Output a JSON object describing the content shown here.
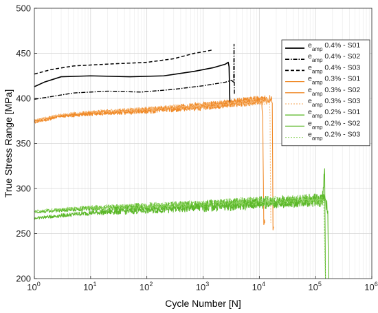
{
  "chart_data": {
    "type": "line",
    "title": "",
    "xlabel": "Cycle Number [N]",
    "ylabel": "True Stress Range [MPa]",
    "xscale": "log",
    "xlim": [
      1,
      1000000
    ],
    "ylim": [
      200,
      500
    ],
    "grid": true,
    "legend_position": "top-right",
    "x_ticks": [
      {
        "base": "10",
        "exp": "0"
      },
      {
        "base": "10",
        "exp": "1"
      },
      {
        "base": "10",
        "exp": "2"
      },
      {
        "base": "10",
        "exp": "3"
      },
      {
        "base": "10",
        "exp": "4"
      },
      {
        "base": "10",
        "exp": "5"
      },
      {
        "base": "10",
        "exp": "6"
      }
    ],
    "x_tick_values": [
      1,
      10,
      100,
      1000,
      10000,
      100000,
      1000000
    ],
    "y_ticks": [
      "200",
      "250",
      "300",
      "350",
      "400",
      "450",
      "500"
    ],
    "y_tick_values": [
      200,
      250,
      300,
      350,
      400,
      450,
      500
    ],
    "series": [
      {
        "name": "e_amp 0.4% - S01",
        "legend": {
          "base": "e",
          "sub": "amp",
          "rest": " 0.4% - S01"
        },
        "color": "#000000",
        "dash": "solid",
        "width": 1.6,
        "noise": 0,
        "points": [
          [
            1,
            413
          ],
          [
            1.5,
            418
          ],
          [
            3,
            424
          ],
          [
            10,
            425
          ],
          [
            50,
            424
          ],
          [
            200,
            425
          ],
          [
            700,
            430
          ],
          [
            1500,
            434
          ],
          [
            2500,
            438
          ],
          [
            2800,
            440
          ],
          [
            2900,
            435
          ],
          [
            3000,
            393
          ]
        ]
      },
      {
        "name": "e_amp 0.4% - S02",
        "legend": {
          "base": "e",
          "sub": "amp",
          "rest": " 0.4% - S02"
        },
        "color": "#000000",
        "dash": "6,2,1.5,2",
        "width": 1.4,
        "noise": 0,
        "points": [
          [
            1,
            399
          ],
          [
            2,
            402
          ],
          [
            5,
            406
          ],
          [
            20,
            408
          ],
          [
            80,
            407
          ],
          [
            300,
            410
          ],
          [
            1000,
            414
          ],
          [
            2500,
            418
          ],
          [
            3200,
            420
          ],
          [
            3500,
            418
          ],
          [
            3550,
            460
          ],
          [
            3600,
            405
          ]
        ]
      },
      {
        "name": "e_amp 0.4% - S03",
        "legend": {
          "base": "e",
          "sub": "amp",
          "rest": " 0.4% - S03"
        },
        "color": "#000000",
        "dash": "5,3",
        "width": 1.5,
        "noise": 0,
        "points": [
          [
            1,
            427
          ],
          [
            2,
            432
          ],
          [
            5,
            436
          ],
          [
            20,
            438
          ],
          [
            100,
            440
          ],
          [
            300,
            444
          ],
          [
            700,
            450
          ],
          [
            1300,
            453
          ],
          [
            1500,
            454
          ]
        ]
      },
      {
        "name": "e_amp 0.3% - S01",
        "legend": {
          "base": "e",
          "sub": "amp",
          "rest": " 0.3% - S01"
        },
        "color": "#f08a28",
        "dash": "solid",
        "width": 1.1,
        "noise": 5,
        "points": [
          [
            1,
            373
          ],
          [
            3,
            380
          ],
          [
            10,
            383
          ],
          [
            100,
            386
          ],
          [
            1000,
            391
          ],
          [
            5000,
            396
          ],
          [
            11000,
            398
          ],
          [
            11500,
            380
          ],
          [
            12000,
            260
          ],
          [
            12500,
            262
          ]
        ]
      },
      {
        "name": "e_amp 0.3% - S02",
        "legend": {
          "base": "e",
          "sub": "amp",
          "rest": " 0.3% - S02"
        },
        "color": "#f08a28",
        "dash": "solid",
        "width": 1.1,
        "noise": 5,
        "points": [
          [
            1,
            375
          ],
          [
            3,
            381
          ],
          [
            10,
            384
          ],
          [
            100,
            387
          ],
          [
            1000,
            392
          ],
          [
            10000,
            397
          ],
          [
            16000,
            399
          ],
          [
            17000,
            395
          ],
          [
            17500,
            254
          ],
          [
            18000,
            256
          ]
        ]
      },
      {
        "name": "e_amp 0.3% - S03",
        "legend": {
          "base": "e",
          "sub": "amp",
          "rest": " 0.3% - S03"
        },
        "color": "#f6b878",
        "dash": "2,2",
        "width": 1.1,
        "noise": 4,
        "points": [
          [
            1,
            376
          ],
          [
            3,
            382
          ],
          [
            10,
            385
          ],
          [
            100,
            388
          ],
          [
            1000,
            392
          ],
          [
            10000,
            396
          ],
          [
            15000,
            397
          ],
          [
            15500,
            380
          ],
          [
            16000,
            262
          ]
        ]
      },
      {
        "name": "e_amp 0.2% - S01",
        "legend": {
          "base": "e",
          "sub": "amp",
          "rest": " 0.2% - S01"
        },
        "color": "#5cb82a",
        "dash": "solid",
        "width": 1.1,
        "noise": 6,
        "points": [
          [
            1,
            267
          ],
          [
            3,
            270
          ],
          [
            10,
            273
          ],
          [
            100,
            276
          ],
          [
            1000,
            279
          ],
          [
            10000,
            283
          ],
          [
            100000,
            286
          ],
          [
            130000,
            282
          ],
          [
            145000,
            322
          ],
          [
            150000,
            200
          ]
        ]
      },
      {
        "name": "e_amp 0.2% - S02",
        "legend": {
          "base": "e",
          "sub": "amp",
          "rest": " 0.2% - S02"
        },
        "color": "#5cb82a",
        "dash": "solid",
        "width": 1.1,
        "noise": 6,
        "points": [
          [
            1,
            274
          ],
          [
            3,
            276
          ],
          [
            10,
            278
          ],
          [
            100,
            280
          ],
          [
            1000,
            282
          ],
          [
            10000,
            285
          ],
          [
            100000,
            288
          ],
          [
            150000,
            288
          ],
          [
            165000,
            275
          ],
          [
            170000,
            200
          ]
        ]
      },
      {
        "name": "e_amp 0.2% - S03",
        "legend": {
          "base": "e",
          "sub": "amp",
          "rest": " 0.2% - S03"
        },
        "color": "#8fd462",
        "dash": "2,2",
        "width": 1.1,
        "noise": 5,
        "points": [
          [
            1,
            275
          ],
          [
            3,
            277
          ],
          [
            10,
            279
          ],
          [
            100,
            281
          ],
          [
            1000,
            283
          ],
          [
            10000,
            286
          ],
          [
            100000,
            288
          ],
          [
            140000,
            286
          ],
          [
            150000,
            200
          ]
        ]
      }
    ]
  }
}
